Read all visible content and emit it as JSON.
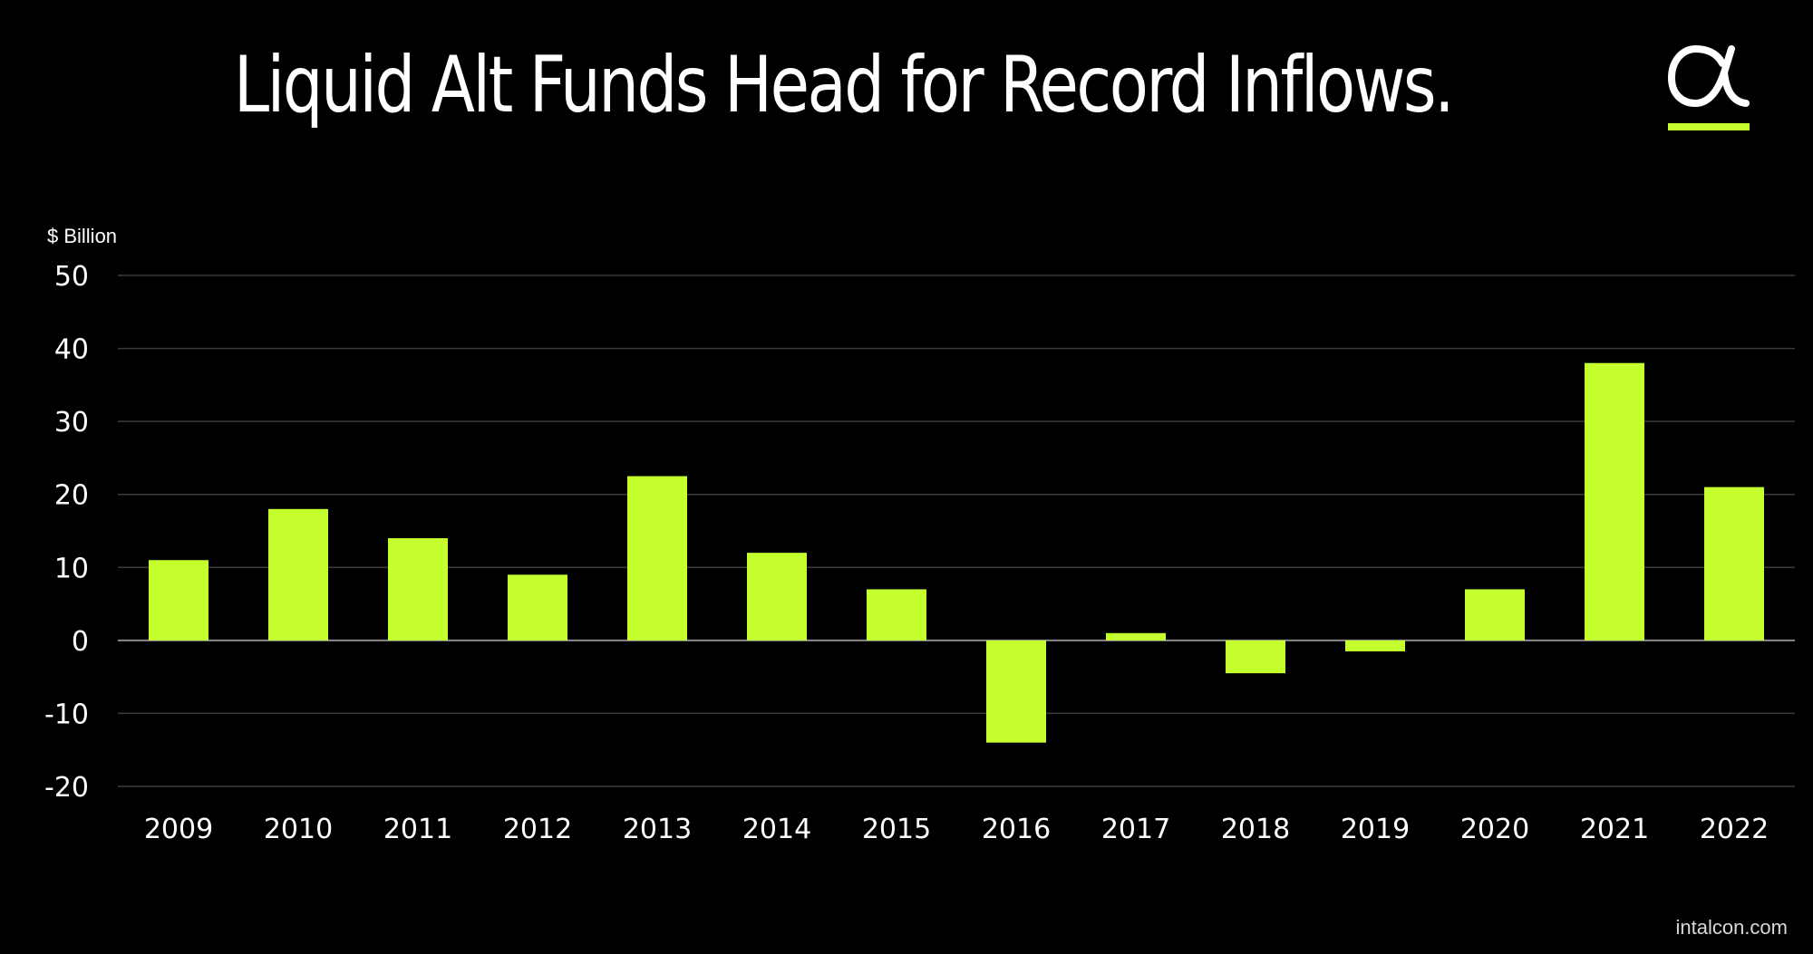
{
  "header": {
    "title": "Liquid Alt Funds Head for Record Inflows."
  },
  "logo": {
    "icon": "alpha-logo-icon",
    "glyph": "α",
    "accent": "#c6ff2e"
  },
  "footer": {
    "source": "intalcon.com"
  },
  "colors": {
    "background": "#000000",
    "bar": "#c6ff2e",
    "grid": "#3a3a3a",
    "text": "#ffffff"
  },
  "chart_data": {
    "type": "bar",
    "title": "Liquid Alt Funds Head for Record Inflows.",
    "ylabel": "$ Billion",
    "xlabel": "",
    "categories": [
      "2009",
      "2010",
      "2011",
      "2012",
      "2013",
      "2014",
      "2015",
      "2016",
      "2017",
      "2018",
      "2019",
      "2020",
      "2021",
      "2022"
    ],
    "values": [
      11,
      18,
      14,
      9,
      22.5,
      12,
      7,
      -14,
      1,
      -4.5,
      -1.5,
      7,
      38,
      21
    ],
    "ylim": [
      -20,
      50
    ],
    "yticks": [
      50,
      40,
      30,
      20,
      10,
      0,
      -10,
      -20
    ],
    "ytick_labels": [
      "50",
      "40",
      "30",
      "20",
      "10",
      "0",
      "-10",
      "-20"
    ],
    "grid": true,
    "legend": "none"
  }
}
